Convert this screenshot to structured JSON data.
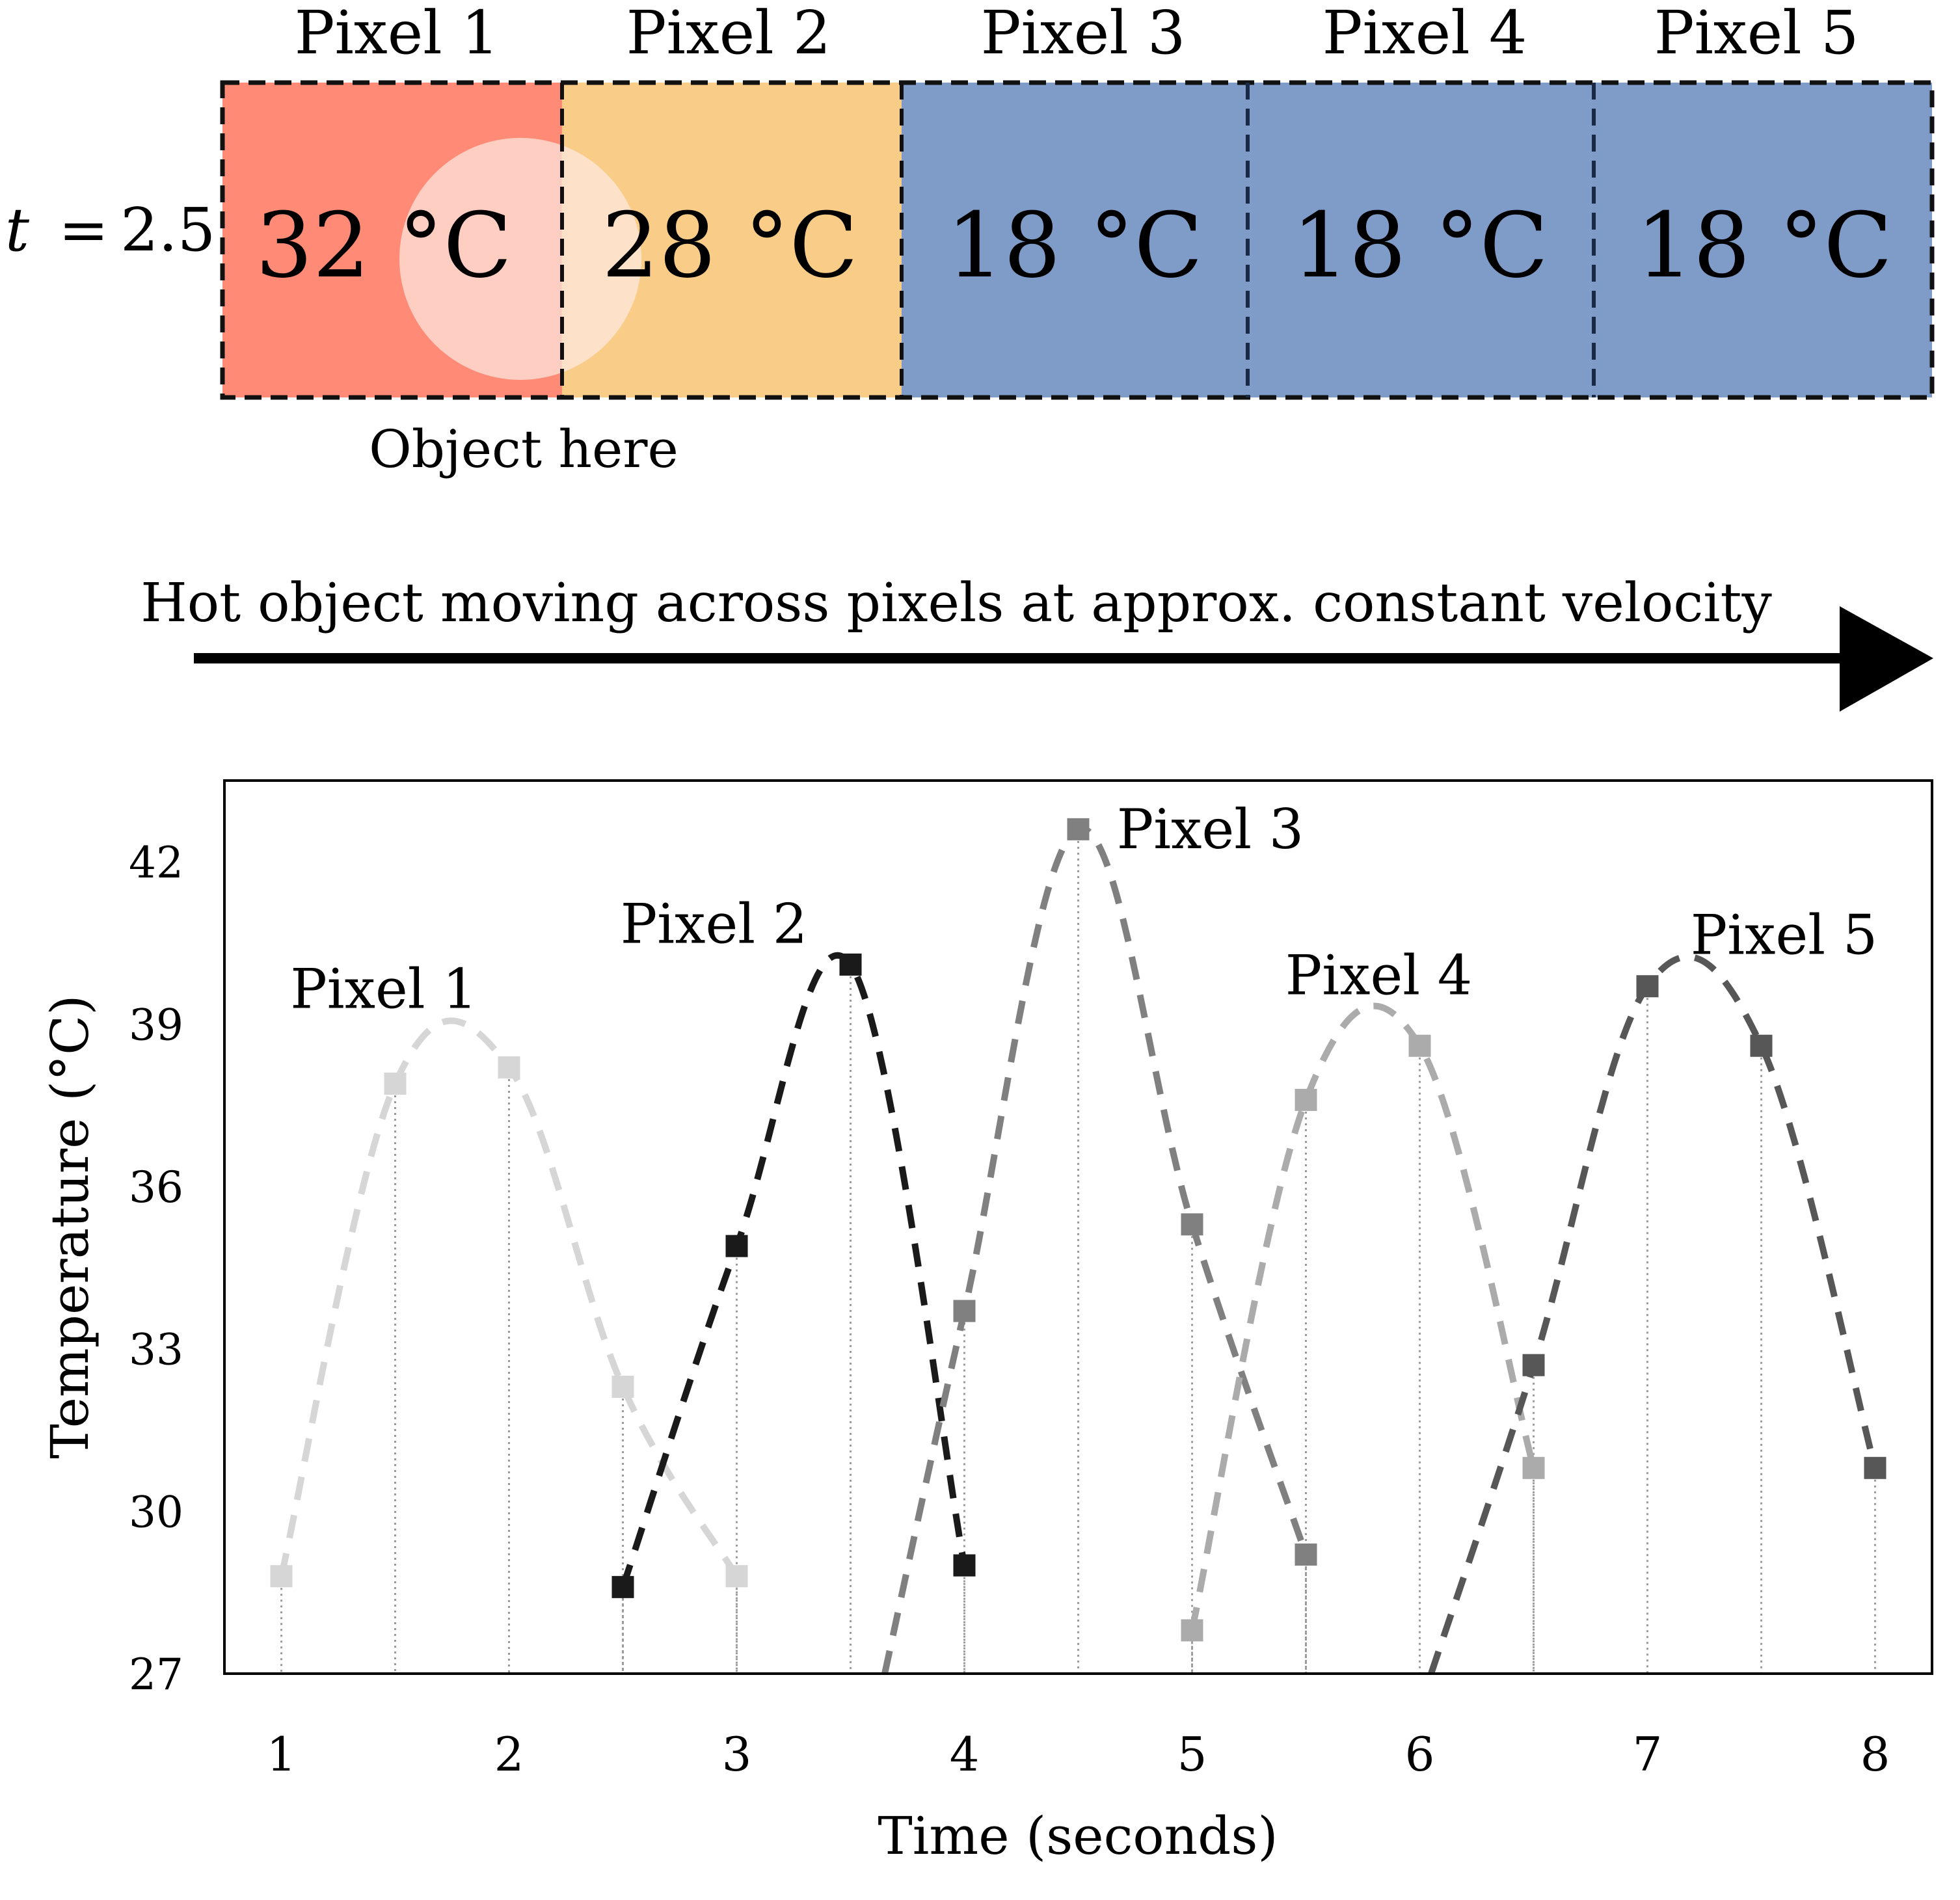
{
  "diagram": {
    "time_label_prefix": "t",
    "time_label_eq": "=",
    "time_value": "2.5",
    "object_label": "Object here",
    "arrow_label": "Hot object moving across pixels at approx. constant velocity",
    "pixels": [
      {
        "label": "Pixel 1",
        "temp": "32 °C",
        "color": "#ff8a75"
      },
      {
        "label": "Pixel 2",
        "temp": "28 °C",
        "color": "#f9cd88"
      },
      {
        "label": "Pixel 3",
        "temp": "18 °C",
        "color": "#7f9cc9"
      },
      {
        "label": "Pixel 4",
        "temp": "18 °C",
        "color": "#7f9cc9"
      },
      {
        "label": "Pixel 5",
        "temp": "18 °C",
        "color": "#7f9cc9"
      }
    ],
    "object_color": "#ffe9e2"
  },
  "chart_data": {
    "type": "line",
    "xlabel": "Time (seconds)",
    "ylabel": "Temperature (°C)",
    "xlim": [
      0.75,
      8.25
    ],
    "ylim": [
      27,
      43.5
    ],
    "xticks": [
      1,
      2,
      3,
      4,
      5,
      6,
      7,
      8
    ],
    "yticks": [
      27,
      30,
      33,
      36,
      39,
      42
    ],
    "grid": "vertical dotted lines from each marker",
    "series": [
      {
        "name": "Pixel 1",
        "color": "#d6d6d6",
        "x": [
          1,
          1.5,
          2,
          2.5,
          3
        ],
        "y": [
          28.8,
          37.9,
          38.2,
          32.3,
          28.8
        ],
        "label_at": [
          1.45,
          39.3
        ]
      },
      {
        "name": "Pixel 2",
        "color": "#1a1a1a",
        "x": [
          2.5,
          3,
          3.5,
          4
        ],
        "y": [
          28.6,
          34.9,
          40.1,
          29.0
        ],
        "label_at": [
          2.9,
          40.5
        ]
      },
      {
        "name": "Pixel 3",
        "color": "#808080",
        "x": [
          3.65,
          4,
          4.5,
          5,
          5.5
        ],
        "y": [
          27.0,
          33.7,
          42.6,
          35.3,
          29.2
        ],
        "label_at": [
          5.08,
          42.25
        ]
      },
      {
        "name": "Pixel 4",
        "color": "#ababab",
        "x": [
          5,
          5.5,
          6,
          6.5
        ],
        "y": [
          27.8,
          37.6,
          38.6,
          30.8
        ],
        "label_at": [
          5.82,
          39.55
        ]
      },
      {
        "name": "Pixel 5",
        "color": "#575757",
        "x": [
          6.05,
          6.5,
          7,
          7.5,
          8
        ],
        "y": [
          27.0,
          32.7,
          39.7,
          38.6,
          30.8
        ],
        "label_at": [
          7.6,
          40.3
        ]
      }
    ]
  }
}
